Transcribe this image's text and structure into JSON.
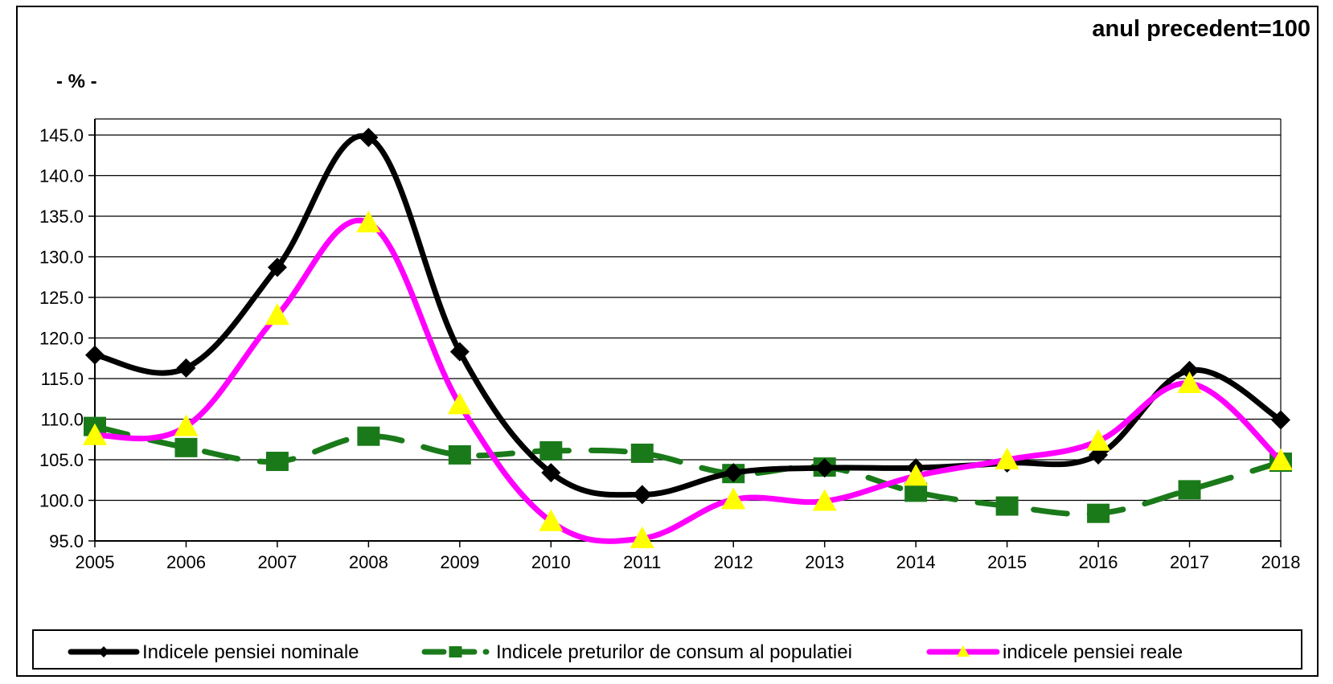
{
  "header": {
    "subtitle": "anul precedent=100",
    "unit": "- % -"
  },
  "chart_data": {
    "type": "line",
    "title": "",
    "subtitle": "anul precedent=100",
    "ylabel": "- % -",
    "xlabel": "",
    "x": [
      "2005",
      "2006",
      "2007",
      "2008",
      "2009",
      "2010",
      "2011",
      "2012",
      "2013",
      "2014",
      "2015",
      "2016",
      "2017",
      "2018"
    ],
    "ylim": [
      95,
      145
    ],
    "yticks": [
      "95.0",
      "100.0",
      "105.0",
      "110.0",
      "115.0",
      "120.0",
      "125.0",
      "130.0",
      "135.0",
      "140.0",
      "145.0"
    ],
    "grid": true,
    "legend_position": "bottom",
    "series": [
      {
        "name": "Indicele pensiei nominale",
        "color": "#000000",
        "style": "solid",
        "marker": "diamond",
        "values": [
          117.9,
          116.3,
          128.7,
          144.7,
          118.3,
          103.4,
          100.7,
          103.4,
          104.0,
          104.0,
          104.6,
          105.6,
          116.0,
          109.9
        ]
      },
      {
        "name": "Indicele preturilor de consum al populatiei",
        "color": "#1a7a1a",
        "style": "dashed",
        "marker": "square",
        "values": [
          109.1,
          106.5,
          104.8,
          107.9,
          105.6,
          106.1,
          105.8,
          103.3,
          104.1,
          101.0,
          99.3,
          98.4,
          101.3,
          104.7
        ]
      },
      {
        "name": "indicele pensiei reale",
        "color": "#ff00ff",
        "style": "solid",
        "marker": "triangle",
        "marker_color": "#ffff00",
        "values": [
          108.0,
          109.1,
          122.8,
          134.2,
          111.8,
          97.4,
          95.3,
          100.1,
          99.9,
          103.0,
          105.0,
          107.3,
          114.4,
          104.9
        ]
      }
    ]
  }
}
